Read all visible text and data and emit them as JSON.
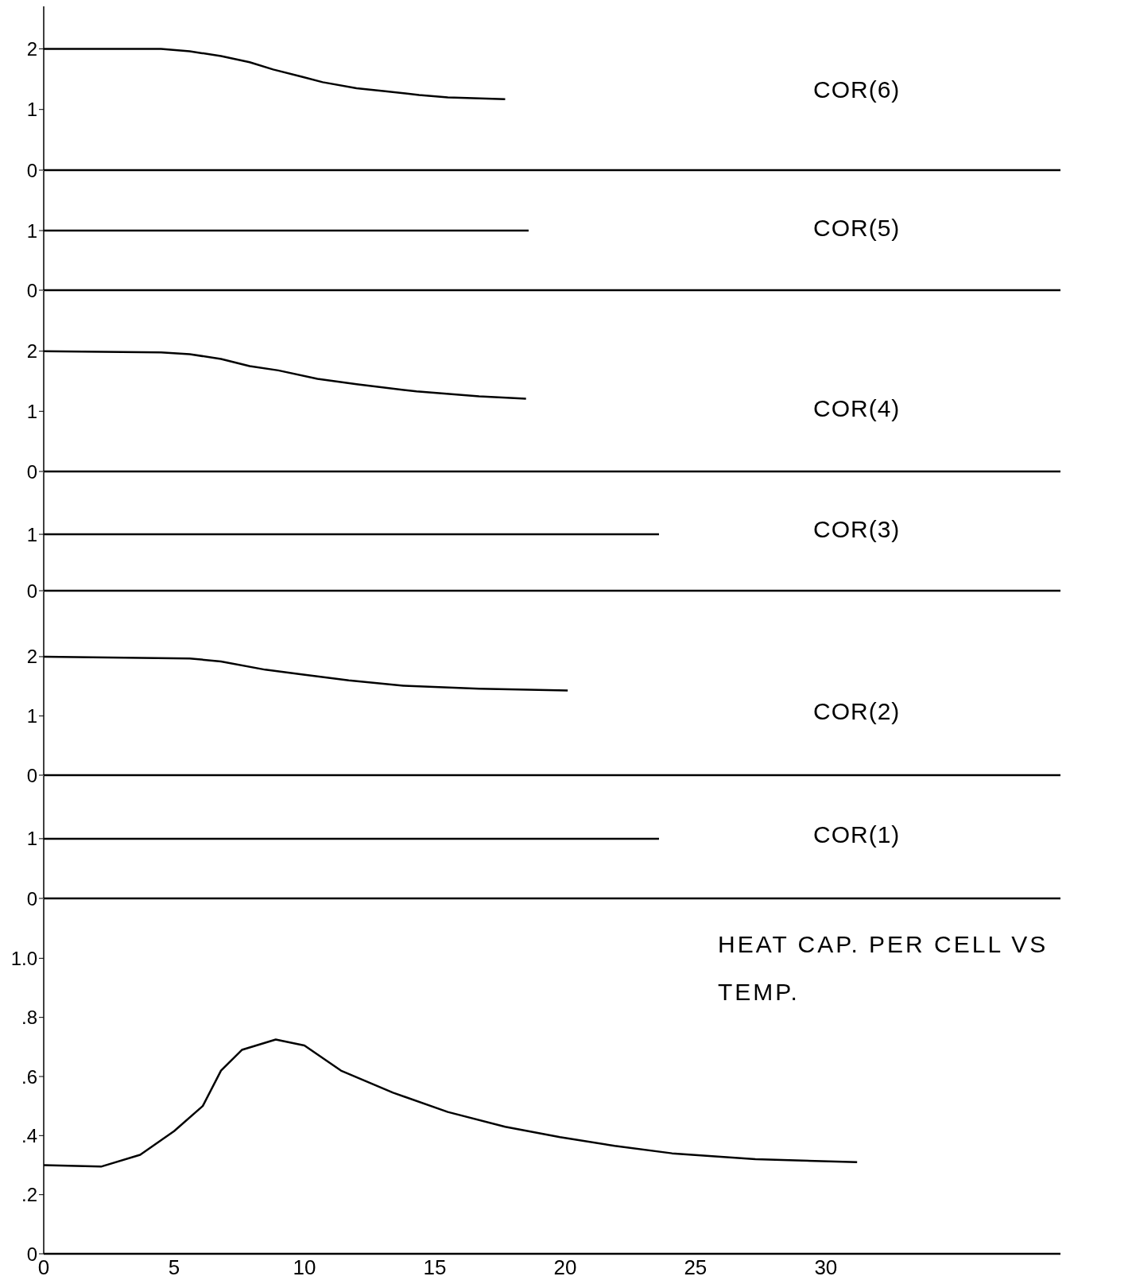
{
  "chart_data": [
    {
      "type": "line",
      "title": "COR(6)",
      "xlim": [
        0,
        39
      ],
      "xticks": [
        0,
        5,
        10,
        15,
        20,
        25,
        30
      ],
      "ylim": [
        0,
        2.7
      ],
      "yticks": [
        0,
        1,
        2
      ],
      "tick_labels": "y",
      "marker": "none",
      "line_style": "solid",
      "series": [
        {
          "color": "#000000",
          "x": [
            0,
            4.5,
            5.6,
            6.8,
            7.9,
            8.8,
            9.9,
            10.7,
            12.0,
            13.1,
            14.4,
            15.5,
            17.7
          ],
          "values": [
            2,
            2,
            1.96,
            1.88,
            1.78,
            1.66,
            1.54,
            1.45,
            1.35,
            1.3,
            1.24,
            1.2,
            1.17
          ]
        }
      ]
    },
    {
      "type": "line",
      "title": "COR(5)",
      "xlim": [
        0,
        39
      ],
      "xticks": [
        0,
        5,
        10,
        15,
        20,
        25,
        30
      ],
      "ylim": [
        0,
        2
      ],
      "yticks": [
        0,
        1
      ],
      "tick_labels": "y",
      "marker": "none",
      "line_style": "solid",
      "series": [
        {
          "color": "#000000",
          "x": [
            0,
            18.6
          ],
          "values": [
            1,
            1
          ]
        }
      ]
    },
    {
      "type": "line",
      "title": "COR(4)",
      "xlim": [
        0,
        39
      ],
      "xticks": [
        0,
        5,
        10,
        15,
        20,
        25,
        30
      ],
      "ylim": [
        0,
        3
      ],
      "yticks": [
        0,
        1,
        2
      ],
      "tick_labels": "y",
      "marker": "none",
      "line_style": "solid",
      "series": [
        {
          "color": "#000000",
          "x": [
            0,
            4.5,
            5.6,
            6.8,
            7.9,
            9.0,
            10.5,
            12.0,
            14.3,
            16.7,
            18.5
          ],
          "values": [
            2,
            1.98,
            1.95,
            1.87,
            1.75,
            1.68,
            1.54,
            1.45,
            1.33,
            1.25,
            1.21
          ]
        }
      ]
    },
    {
      "type": "line",
      "title": "COR(3)",
      "xlim": [
        0,
        39
      ],
      "xticks": [
        0,
        5,
        10,
        15,
        20,
        25,
        30
      ],
      "ylim": [
        0,
        2.1
      ],
      "yticks": [
        0,
        1
      ],
      "tick_labels": "y",
      "marker": "none",
      "line_style": "solid",
      "series": [
        {
          "color": "#000000",
          "x": [
            0,
            23.6
          ],
          "values": [
            1,
            1
          ]
        }
      ]
    },
    {
      "type": "line",
      "title": "COR(2)",
      "xlim": [
        0,
        39
      ],
      "xticks": [
        0,
        5,
        10,
        15,
        20,
        25,
        30
      ],
      "ylim": [
        0,
        3.1
      ],
      "yticks": [
        0,
        1,
        2
      ],
      "tick_labels": "y",
      "marker": "none",
      "line_style": "solid",
      "series": [
        {
          "color": "#000000",
          "x": [
            0,
            5.6,
            6.8,
            8.5,
            9.9,
            11.7,
            13.8,
            16.7,
            20.1
          ],
          "values": [
            2,
            1.97,
            1.92,
            1.78,
            1.7,
            1.6,
            1.51,
            1.46,
            1.43
          ]
        }
      ]
    },
    {
      "type": "line",
      "title": "COR(1)",
      "xlim": [
        0,
        39
      ],
      "xticks": [
        0,
        5,
        10,
        15,
        20,
        25,
        30
      ],
      "ylim": [
        0,
        2.05
      ],
      "yticks": [
        0,
        1
      ],
      "tick_labels": "y",
      "marker": "none",
      "line_style": "solid",
      "series": [
        {
          "color": "#000000",
          "x": [
            0,
            23.6
          ],
          "values": [
            1,
            1
          ]
        }
      ]
    },
    {
      "type": "line",
      "title": "HEAT CAP. PER CELL VS TEMP.",
      "xlim": [
        0,
        39
      ],
      "xticks": [
        0,
        5,
        10,
        15,
        20,
        25,
        30
      ],
      "ylim": [
        0,
        1.2
      ],
      "yticks": [
        0,
        {
          "value": 0.2,
          "label": ".2"
        },
        {
          "value": 0.4,
          "label": ".4"
        },
        {
          "value": 0.6,
          "label": ".6"
        },
        {
          "value": 0.8,
          "label": ".8"
        },
        {
          "value": 1.0,
          "label": "1.0"
        }
      ],
      "marker": "none",
      "line_style": "solid",
      "series": [
        {
          "color": "#000000",
          "x": [
            0,
            2.2,
            3.7,
            5.0,
            6.1,
            6.8,
            7.6,
            8.9,
            10.0,
            11.4,
            13.4,
            15.5,
            17.7,
            19.8,
            21.9,
            24.1,
            27.3,
            31.2
          ],
          "values": [
            0.3,
            0.295,
            0.335,
            0.415,
            0.5,
            0.62,
            0.69,
            0.725,
            0.705,
            0.62,
            0.545,
            0.48,
            0.43,
            0.395,
            0.365,
            0.34,
            0.32,
            0.31
          ]
        }
      ]
    }
  ]
}
